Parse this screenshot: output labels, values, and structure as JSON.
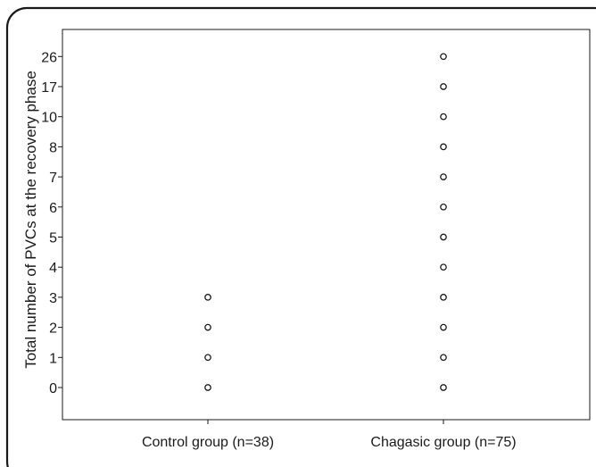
{
  "chart_data": {
    "type": "scatter",
    "title": "",
    "xlabel": "",
    "ylabel": "Total number of PVCs at the recovery phase",
    "categories": [
      "Control group (n=38)",
      "Chagasic group (n=75)"
    ],
    "y_categories": [
      "0",
      "1",
      "2",
      "3",
      "4",
      "5",
      "6",
      "7",
      "8",
      "10",
      "17",
      "26"
    ],
    "y_scale": "ordinal",
    "grid": false,
    "legend": "none",
    "series": [
      {
        "points": [
          {
            "x": "Control group (n=38)",
            "y": "0"
          },
          {
            "x": "Control group (n=38)",
            "y": "1"
          },
          {
            "x": "Control group (n=38)",
            "y": "2"
          },
          {
            "x": "Control group (n=38)",
            "y": "3"
          },
          {
            "x": "Chagasic group (n=75)",
            "y": "0"
          },
          {
            "x": "Chagasic group (n=75)",
            "y": "1"
          },
          {
            "x": "Chagasic group (n=75)",
            "y": "2"
          },
          {
            "x": "Chagasic group (n=75)",
            "y": "3"
          },
          {
            "x": "Chagasic group (n=75)",
            "y": "4"
          },
          {
            "x": "Chagasic group (n=75)",
            "y": "5"
          },
          {
            "x": "Chagasic group (n=75)",
            "y": "6"
          },
          {
            "x": "Chagasic group (n=75)",
            "y": "7"
          },
          {
            "x": "Chagasic group (n=75)",
            "y": "8"
          },
          {
            "x": "Chagasic group (n=75)",
            "y": "10"
          },
          {
            "x": "Chagasic group (n=75)",
            "y": "17"
          },
          {
            "x": "Chagasic group (n=75)",
            "y": "26"
          }
        ]
      }
    ],
    "marker_color": "#1a1a1a",
    "frame_color": "#1a1a1a"
  }
}
